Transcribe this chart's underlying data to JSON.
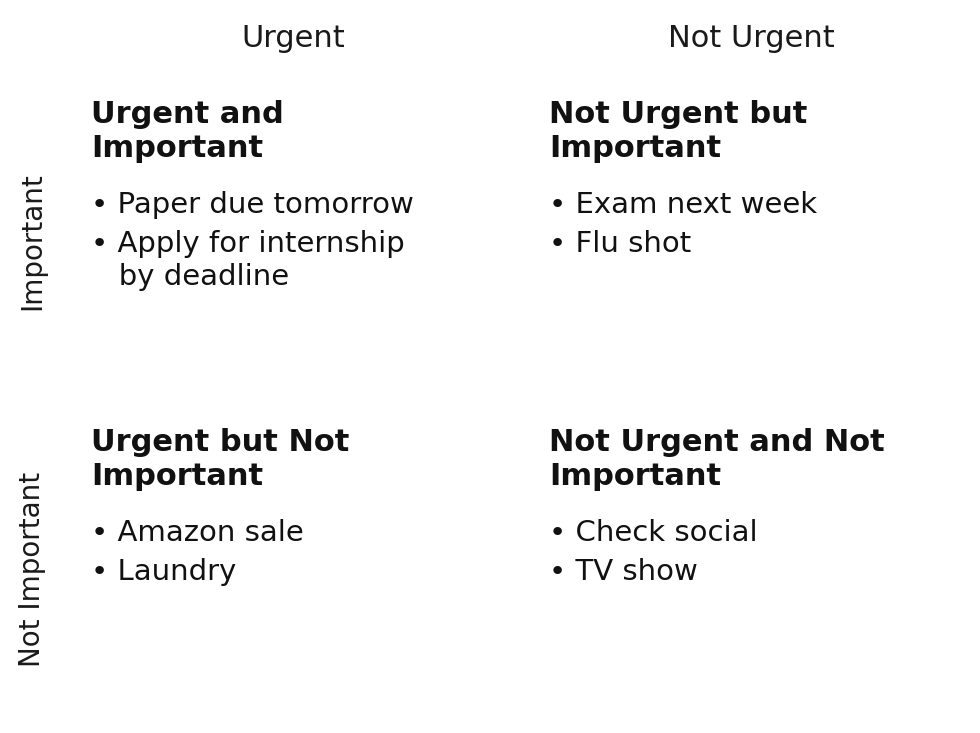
{
  "col_headers": [
    "Urgent",
    "Not Urgent"
  ],
  "row_headers": [
    "Important",
    "Not Important"
  ],
  "header_bg": "#a8a8a8",
  "header_text_color": "#1a1a1a",
  "row_header_bg": "#969696",
  "black_corner": "#0d0d0d",
  "cells": [
    {
      "title": "Urgent and\nImportant",
      "bullets": [
        "Paper due tomorrow",
        "Apply for internship\n   by deadline"
      ],
      "color": "#8aafc2"
    },
    {
      "title": "Not Urgent but\nImportant",
      "bullets": [
        "Exam next week",
        "Flu shot"
      ],
      "color": "#d98a80"
    },
    {
      "title": "Urgent but Not\nImportant",
      "bullets": [
        "Amazon sale",
        "Laundry"
      ],
      "color": "#85c9a3"
    },
    {
      "title": "Not Urgent and Not\nImportant",
      "bullets": [
        "Check social",
        "TV show"
      ],
      "color": "#bc87d0"
    }
  ],
  "title_fontsize": 22,
  "bullet_fontsize": 21,
  "header_fontsize": 22,
  "row_header_fontsize": 20,
  "figsize": [
    9.8,
    7.33
  ],
  "dpi": 100
}
